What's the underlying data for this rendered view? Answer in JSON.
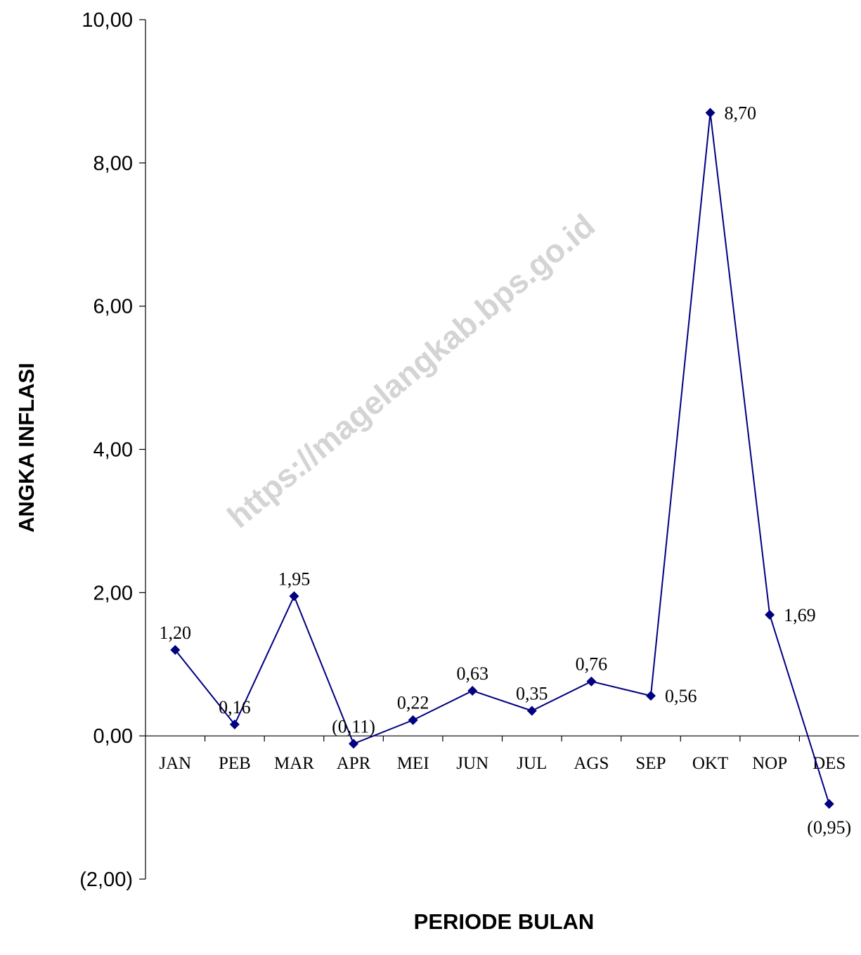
{
  "watermark": "https://magelangkab.bps.go.id",
  "chart_data": {
    "type": "line",
    "xlabel": "PERIODE BULAN",
    "ylabel": "ANGKA INFLASI",
    "ylim": [
      -2,
      10
    ],
    "yticks": [
      10,
      8,
      6,
      4,
      2,
      0,
      -2
    ],
    "ytick_labels": [
      "10,00",
      "8,00",
      "6,00",
      "4,00",
      "2,00",
      "0,00",
      "(2,00)"
    ],
    "grid": false,
    "legend": "none",
    "categories": [
      "JAN",
      "PEB",
      "MAR",
      "APR",
      "MEI",
      "JUN",
      "JUL",
      "AGS",
      "SEP",
      "OKT",
      "NOP",
      "DES"
    ],
    "series": [
      {
        "color": "#000080",
        "values": [
          1.2,
          0.16,
          1.95,
          -0.11,
          0.22,
          0.63,
          0.35,
          0.76,
          0.56,
          8.7,
          1.69,
          -0.95
        ],
        "data_labels": [
          "1,20",
          "0,16",
          "1,95",
          "(0,11)",
          "0,22",
          "0,63",
          "0,35",
          "0,76",
          "0,56",
          "8,70",
          "1,69",
          "(0,95)"
        ]
      }
    ]
  }
}
